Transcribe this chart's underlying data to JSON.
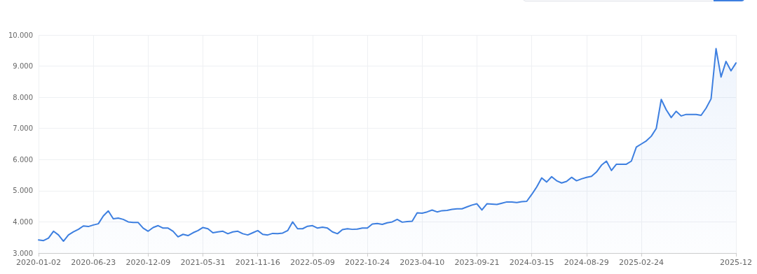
{
  "chart_data": {
    "type": "area",
    "categories": [
      "2020-01-02",
      null,
      null,
      null,
      null,
      null,
      null,
      null,
      null,
      null,
      null,
      "2020-06-23",
      null,
      null,
      null,
      null,
      null,
      null,
      null,
      null,
      null,
      null,
      "2020-12-09",
      null,
      null,
      null,
      null,
      null,
      null,
      null,
      null,
      null,
      null,
      "2021-05-31",
      null,
      null,
      null,
      null,
      null,
      null,
      null,
      null,
      null,
      null,
      "2021-11-16",
      null,
      null,
      null,
      null,
      null,
      null,
      null,
      null,
      null,
      null,
      "2022-05-09",
      null,
      null,
      null,
      null,
      null,
      null,
      null,
      null,
      null,
      null,
      "2022-10-24",
      null,
      null,
      null,
      null,
      null,
      null,
      null,
      null,
      null,
      null,
      "2023-04-10",
      null,
      null,
      null,
      null,
      null,
      null,
      null,
      null,
      null,
      null,
      "2023-09-21",
      null,
      null,
      null,
      null,
      null,
      null,
      null,
      null,
      null,
      null,
      "2024-03-15",
      null,
      null,
      null,
      null,
      null,
      null,
      null,
      null,
      null,
      null,
      "2024-08-29",
      null,
      null,
      null,
      null,
      null,
      null,
      null,
      null,
      null,
      null,
      "2025-02-24",
      null,
      null,
      null,
      null,
      null,
      null,
      null,
      null,
      null,
      null,
      null,
      null,
      null,
      null,
      null,
      null,
      null,
      null,
      "2025-12"
    ],
    "series": [
      {
        "color": "#3d7fe0",
        "values": [
          3420,
          3400,
          3480,
          3700,
          3580,
          3380,
          3580,
          3680,
          3760,
          3870,
          3850,
          3900,
          3940,
          4190,
          4350,
          4100,
          4120,
          4080,
          4000,
          3980,
          3980,
          3800,
          3700,
          3820,
          3880,
          3800,
          3800,
          3700,
          3520,
          3600,
          3560,
          3650,
          3720,
          3820,
          3780,
          3650,
          3680,
          3700,
          3620,
          3680,
          3700,
          3620,
          3580,
          3650,
          3720,
          3600,
          3580,
          3630,
          3620,
          3640,
          3720,
          4000,
          3780,
          3780,
          3860,
          3880,
          3800,
          3830,
          3800,
          3680,
          3620,
          3750,
          3780,
          3760,
          3770,
          3800,
          3800,
          3930,
          3950,
          3920,
          3970,
          4000,
          4080,
          3990,
          4010,
          4020,
          4290,
          4280,
          4320,
          4380,
          4320,
          4360,
          4370,
          4400,
          4420,
          4420,
          4480,
          4540,
          4580,
          4380,
          4580,
          4570,
          4560,
          4600,
          4640,
          4640,
          4620,
          4650,
          4660,
          4880,
          5120,
          5410,
          5280,
          5450,
          5320,
          5250,
          5300,
          5430,
          5320,
          5380,
          5430,
          5460,
          5600,
          5820,
          5950,
          5650,
          5850,
          5850,
          5850,
          5950,
          6400,
          6500,
          6600,
          6750,
          7000,
          7930,
          7600,
          7350,
          7550,
          7400,
          7450,
          7450,
          7450,
          7420,
          7650,
          7950,
          9560,
          8650,
          9150,
          8850,
          9100
        ]
      }
    ],
    "ylim": [
      3000,
      10000
    ],
    "yticks": [
      {
        "value": 3000,
        "label": "3.000"
      },
      {
        "value": 4000,
        "label": "4.000"
      },
      {
        "value": 5000,
        "label": "5.000"
      },
      {
        "value": 6000,
        "label": "6.000"
      },
      {
        "value": 7000,
        "label": "7.000"
      },
      {
        "value": 8000,
        "label": "8.000"
      },
      {
        "value": 9000,
        "label": "9.000"
      },
      {
        "value": 10000,
        "label": "10.000"
      }
    ],
    "grid": true,
    "marker": "none",
    "line_style": "solid"
  }
}
